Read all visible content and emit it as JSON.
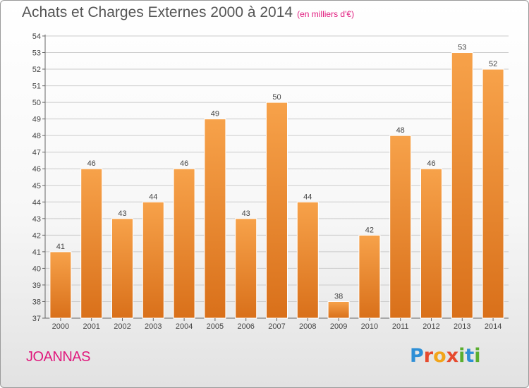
{
  "header": {
    "title": "Achats et Charges Externes 2000 à 2014",
    "subtitle": "(en milliers d'€)"
  },
  "commune": "JOANNAS",
  "logo": {
    "letters": [
      {
        "ch": "P",
        "color": "#2e8fd6"
      },
      {
        "ch": "r",
        "color": "#e64a2e"
      },
      {
        "ch": "o",
        "color": "#f2a51a"
      },
      {
        "ch": "x",
        "color": "#e64a2e"
      },
      {
        "ch": "i",
        "color": "#5aae2f"
      },
      {
        "ch": "t",
        "color": "#2e8fd6"
      },
      {
        "ch": "i",
        "color": "#5aae2f"
      }
    ]
  },
  "colors": {
    "bar_top": "#f7a24a",
    "bar_bottom": "#d9701a",
    "grid": "#cccccc",
    "text": "#444444"
  },
  "chart_data": {
    "type": "bar",
    "categories": [
      "2000",
      "2001",
      "2002",
      "2003",
      "2004",
      "2005",
      "2006",
      "2007",
      "2008",
      "2009",
      "2010",
      "2011",
      "2012",
      "2013",
      "2014"
    ],
    "values": [
      41,
      46,
      43,
      44,
      46,
      49,
      43,
      50,
      44,
      38,
      42,
      48,
      46,
      53,
      52
    ],
    "ylim": [
      37,
      54
    ],
    "yticks": [
      37,
      38,
      39,
      40,
      41,
      42,
      43,
      44,
      45,
      46,
      47,
      48,
      49,
      50,
      51,
      52,
      53,
      54
    ],
    "grid": true,
    "title": "Achats et Charges Externes 2000 à 2014",
    "xlabel": "",
    "ylabel": ""
  }
}
